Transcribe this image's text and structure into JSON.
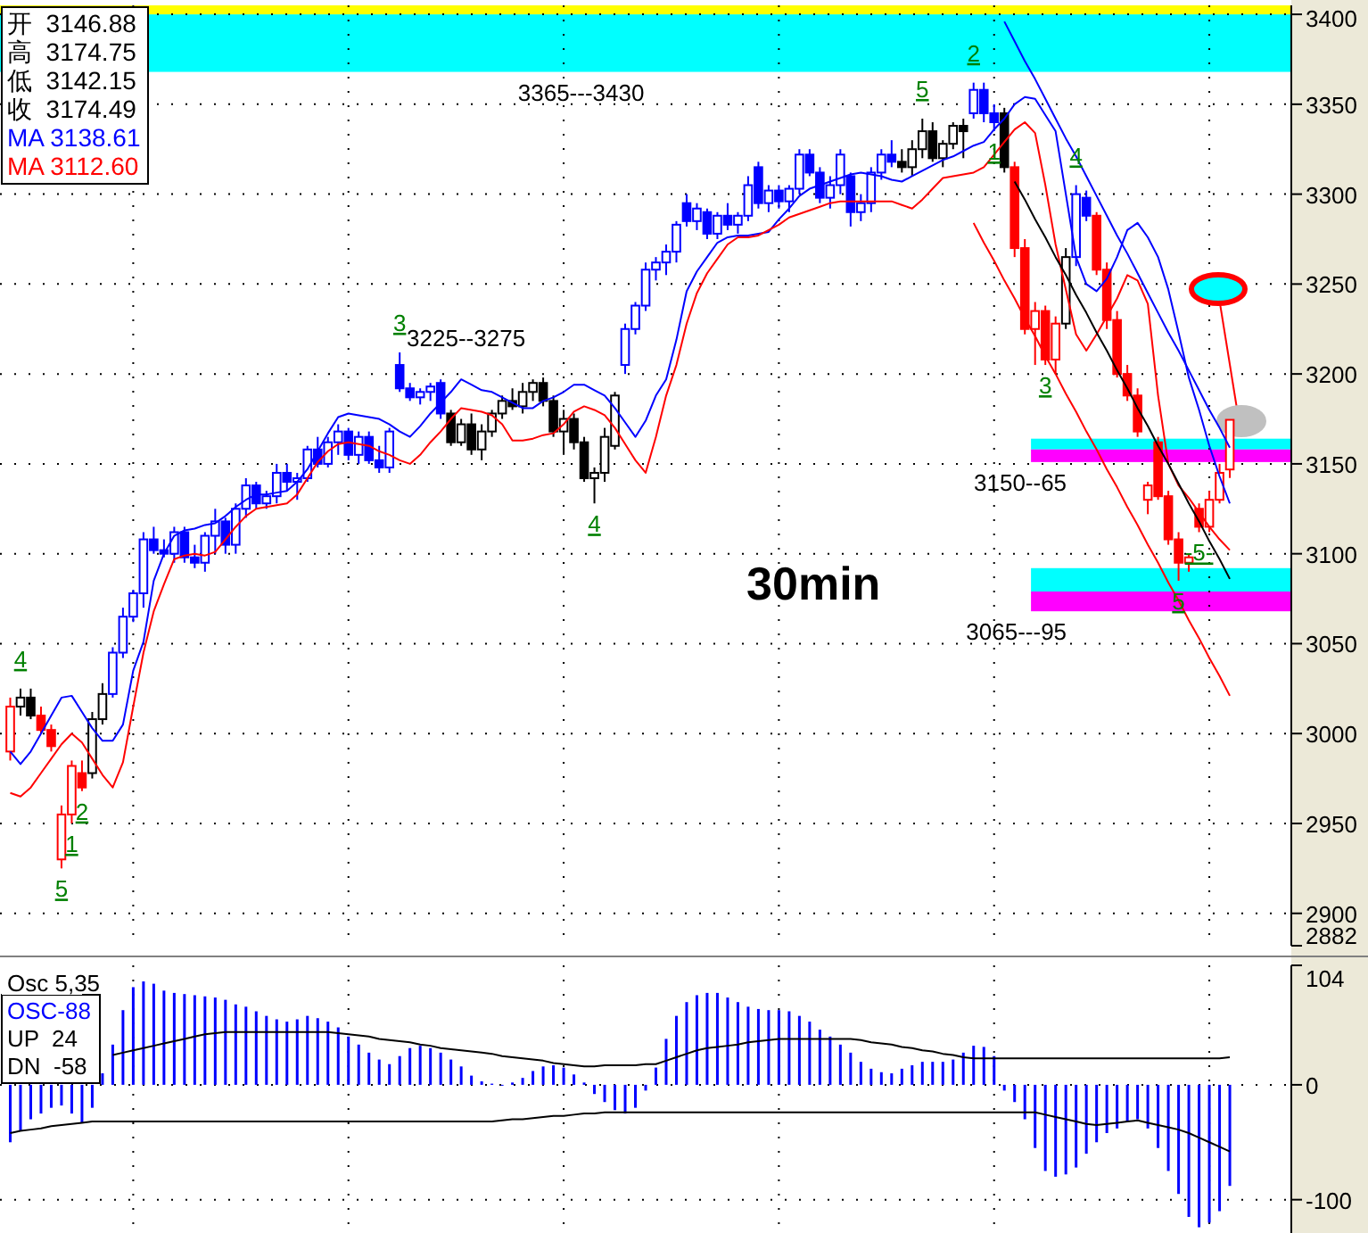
{
  "chart_data": [
    {
      "type": "candlestick",
      "title": "30min",
      "grid": true,
      "tick_labels": "y",
      "ylim": [
        2882,
        3405
      ],
      "yticks": [
        3400,
        3350,
        3300,
        3250,
        3200,
        3150,
        3100,
        3050,
        3000,
        2950,
        2900,
        2882
      ],
      "categories": [
        null,
        null,
        null,
        null,
        null,
        null,
        null,
        null,
        null,
        null,
        null,
        null,
        null,
        null,
        null,
        null,
        null,
        null,
        null,
        null,
        null,
        null,
        null,
        null,
        null,
        null,
        null,
        null,
        null,
        null,
        null,
        null,
        null,
        null,
        null,
        null,
        null,
        null,
        null,
        null,
        null,
        null,
        null,
        null,
        null,
        null,
        null,
        null,
        null,
        null,
        null,
        null,
        null,
        null,
        null,
        null,
        null,
        null,
        null,
        null,
        null,
        null,
        null,
        null,
        null,
        null,
        null,
        null,
        null,
        null,
        null,
        null,
        null,
        null,
        null,
        null,
        null,
        null,
        null,
        null,
        null,
        null,
        null,
        null,
        null,
        null,
        null,
        null,
        null,
        null,
        null,
        null,
        null,
        null,
        null,
        null,
        null,
        null,
        null,
        null,
        null,
        null,
        null,
        null,
        null,
        null,
        null,
        null,
        null,
        null,
        null,
        null,
        null,
        null,
        null,
        null,
        null,
        null,
        null,
        null
      ],
      "ohlc": [
        [
          2990,
          3020,
          2985,
          3015
        ],
        [
          3015,
          3025,
          3010,
          3020
        ],
        [
          3020,
          3025,
          3008,
          3010
        ],
        [
          3010,
          3015,
          3000,
          3002
        ],
        [
          3002,
          3005,
          2990,
          2993
        ],
        [
          2930,
          2960,
          2925,
          2955
        ],
        [
          2955,
          2985,
          2950,
          2982
        ],
        [
          2978,
          2985,
          2968,
          2970
        ],
        [
          2978,
          3012,
          2975,
          3008
        ],
        [
          3008,
          3028,
          3005,
          3022
        ],
        [
          3022,
          3048,
          3020,
          3045
        ],
        [
          3045,
          3070,
          3042,
          3065
        ],
        [
          3065,
          3080,
          3062,
          3078
        ],
        [
          3078,
          3112,
          3070,
          3108
        ],
        [
          3108,
          3115,
          3100,
          3102
        ],
        [
          3102,
          3108,
          3098,
          3100
        ],
        [
          3100,
          3115,
          3095,
          3112
        ],
        [
          3112,
          3115,
          3095,
          3098
        ],
        [
          3098,
          3105,
          3092,
          3095
        ],
        [
          3095,
          3112,
          3090,
          3110
        ],
        [
          3110,
          3125,
          3100,
          3118
        ],
        [
          3118,
          3120,
          3100,
          3105
        ],
        [
          3105,
          3128,
          3100,
          3125
        ],
        [
          3125,
          3142,
          3120,
          3138
        ],
        [
          3138,
          3140,
          3125,
          3128
        ],
        [
          3128,
          3135,
          3125,
          3132
        ],
        [
          3132,
          3150,
          3128,
          3145
        ],
        [
          3145,
          3150,
          3135,
          3140
        ],
        [
          3140,
          3145,
          3130,
          3142
        ],
        [
          3142,
          3160,
          3140,
          3158
        ],
        [
          3158,
          3165,
          3148,
          3150
        ],
        [
          3150,
          3165,
          3148,
          3162
        ],
        [
          3162,
          3172,
          3155,
          3168
        ],
        [
          3168,
          3170,
          3152,
          3155
        ],
        [
          3155,
          3168,
          3150,
          3165
        ],
        [
          3165,
          3168,
          3150,
          3152
        ],
        [
          3152,
          3160,
          3145,
          3148
        ],
        [
          3148,
          3170,
          3145,
          3168
        ],
        [
          3205,
          3212,
          3190,
          3192
        ],
        [
          3192,
          3195,
          3185,
          3187
        ],
        [
          3187,
          3192,
          3183,
          3190
        ],
        [
          3190,
          3195,
          3185,
          3193
        ],
        [
          3195,
          3197,
          3175,
          3178
        ],
        [
          3178,
          3180,
          3160,
          3162
        ],
        [
          3162,
          3175,
          3160,
          3172
        ],
        [
          3172,
          3178,
          3155,
          3158
        ],
        [
          3158,
          3172,
          3152,
          3168
        ],
        [
          3168,
          3180,
          3165,
          3178
        ],
        [
          3178,
          3188,
          3175,
          3185
        ],
        [
          3185,
          3192,
          3180,
          3182
        ],
        [
          3182,
          3195,
          3178,
          3190
        ],
        [
          3190,
          3197,
          3185,
          3195
        ],
        [
          3195,
          3198,
          3182,
          3185
        ],
        [
          3185,
          3188,
          3165,
          3168
        ],
        [
          3168,
          3180,
          3155,
          3175
        ],
        [
          3175,
          3178,
          3158,
          3162
        ],
        [
          3162,
          3165,
          3140,
          3142
        ],
        [
          3142,
          3148,
          3128,
          3145
        ],
        [
          3145,
          3170,
          3140,
          3165
        ],
        [
          3160,
          3190,
          3158,
          3188
        ],
        [
          3205,
          3228,
          3200,
          3225
        ],
        [
          3225,
          3240,
          3222,
          3238
        ],
        [
          3238,
          3262,
          3235,
          3258
        ],
        [
          3258,
          3265,
          3252,
          3262
        ],
        [
          3262,
          3272,
          3255,
          3268
        ],
        [
          3268,
          3285,
          3262,
          3283
        ],
        [
          3295,
          3300,
          3282,
          3285
        ],
        [
          3285,
          3295,
          3280,
          3292
        ],
        [
          3290,
          3292,
          3275,
          3278
        ],
        [
          3278,
          3290,
          3275,
          3288
        ],
        [
          3288,
          3295,
          3280,
          3283
        ],
        [
          3283,
          3290,
          3278,
          3288
        ],
        [
          3288,
          3310,
          3285,
          3305
        ],
        [
          3315,
          3318,
          3292,
          3295
        ],
        [
          3295,
          3305,
          3290,
          3302
        ],
        [
          3302,
          3305,
          3292,
          3296
        ],
        [
          3296,
          3305,
          3290,
          3303
        ],
        [
          3303,
          3325,
          3300,
          3322
        ],
        [
          3322,
          3325,
          3310,
          3312
        ],
        [
          3312,
          3315,
          3295,
          3298
        ],
        [
          3298,
          3310,
          3292,
          3305
        ],
        [
          3305,
          3325,
          3300,
          3322
        ],
        [
          3310,
          3312,
          3282,
          3290
        ],
        [
          3290,
          3300,
          3285,
          3295
        ],
        [
          3295,
          3315,
          3290,
          3312
        ],
        [
          3312,
          3325,
          3308,
          3322
        ],
        [
          3322,
          3330,
          3315,
          3318
        ],
        [
          3318,
          3325,
          3312,
          3315
        ],
        [
          3315,
          3330,
          3310,
          3325
        ],
        [
          3325,
          3342,
          3320,
          3335
        ],
        [
          3335,
          3340,
          3318,
          3320
        ],
        [
          3320,
          3330,
          3315,
          3328
        ],
        [
          3328,
          3340,
          3325,
          3338
        ],
        [
          3338,
          3342,
          3320,
          3335
        ],
        [
          3345,
          3362,
          3342,
          3358
        ],
        [
          3358,
          3362,
          3340,
          3345
        ],
        [
          3345,
          3350,
          3335,
          3340
        ],
        [
          3345,
          3348,
          3312,
          3315
        ],
        [
          3315,
          3318,
          3265,
          3270
        ],
        [
          3270,
          3275,
          3222,
          3225
        ],
        [
          3225,
          3240,
          3205,
          3235
        ],
        [
          3235,
          3238,
          3205,
          3208
        ],
        [
          3208,
          3232,
          3200,
          3228
        ],
        [
          3228,
          3270,
          3225,
          3265
        ],
        [
          3265,
          3305,
          3260,
          3300
        ],
        [
          3298,
          3302,
          3285,
          3288
        ],
        [
          3288,
          3290,
          3255,
          3258
        ],
        [
          3258,
          3262,
          3225,
          3230
        ],
        [
          3230,
          3235,
          3198,
          3200
        ],
        [
          3200,
          3205,
          3185,
          3188
        ],
        [
          3188,
          3192,
          3165,
          3168
        ],
        [
          3130,
          3140,
          3122,
          3138
        ],
        [
          3162,
          3165,
          3130,
          3132
        ],
        [
          3132,
          3135,
          3105,
          3108
        ],
        [
          3108,
          3112,
          3085,
          3095
        ],
        [
          3095,
          3100,
          3090,
          3098
        ],
        [
          3125,
          3128,
          3112,
          3115
        ],
        [
          3115,
          3135,
          3112,
          3130
        ],
        [
          3130,
          3150,
          3128,
          3145
        ],
        [
          3146.88,
          3174.75,
          3142.15,
          3174.49
        ]
      ],
      "colors": [
        "#ff0000",
        "#000000",
        "#000000",
        "#ff0000",
        "#ff0000",
        "#ff0000",
        "#ff0000",
        "#ff0000",
        "#000000",
        "#000000",
        "#0000ff",
        "#0000ff",
        "#0000ff",
        "#0000ff",
        "#0000ff",
        "#0000ff",
        "#0000ff",
        "#0000ff",
        "#0000ff",
        "#0000ff",
        "#0000ff",
        "#0000ff",
        "#0000ff",
        "#0000ff",
        "#0000ff",
        "#0000ff",
        "#0000ff",
        "#0000ff",
        "#0000ff",
        "#0000ff",
        "#0000ff",
        "#0000ff",
        "#0000ff",
        "#0000ff",
        "#0000ff",
        "#0000ff",
        "#0000ff",
        "#0000ff",
        "#0000ff",
        "#0000ff",
        "#0000ff",
        "#0000ff",
        "#0000ff",
        "#000000",
        "#000000",
        "#000000",
        "#000000",
        "#000000",
        "#000000",
        "#000000",
        "#000000",
        "#000000",
        "#000000",
        "#000000",
        "#000000",
        "#000000",
        "#000000",
        "#000000",
        "#000000",
        "#000000",
        "#0000ff",
        "#0000ff",
        "#0000ff",
        "#0000ff",
        "#0000ff",
        "#0000ff",
        "#0000ff",
        "#0000ff",
        "#0000ff",
        "#0000ff",
        "#0000ff",
        "#0000ff",
        "#0000ff",
        "#0000ff",
        "#0000ff",
        "#0000ff",
        "#0000ff",
        "#0000ff",
        "#0000ff",
        "#0000ff",
        "#0000ff",
        "#0000ff",
        "#0000ff",
        "#0000ff",
        "#0000ff",
        "#0000ff",
        "#0000ff",
        "#000000",
        "#000000",
        "#000000",
        "#000000",
        "#000000",
        "#000000",
        "#000000",
        "#0000ff",
        "#0000ff",
        "#0000ff",
        "#000000",
        "#ff0000",
        "#ff0000",
        "#ff0000",
        "#ff0000",
        "#ff0000",
        "#000000",
        "#0000ff",
        "#0000ff",
        "#ff0000",
        "#ff0000",
        "#ff0000",
        "#ff0000",
        "#ff0000",
        "#ff0000",
        "#ff0000",
        "#ff0000",
        "#ff0000",
        "#ff0000",
        "#ff0000",
        "#ff0000",
        "#ff0000",
        "#ff0000"
      ],
      "value_labels": [
        null,
        "4",
        null,
        null,
        null,
        "5",
        "1",
        "2",
        null,
        null,
        null,
        null,
        null,
        null,
        null,
        null,
        null,
        null,
        null,
        null,
        null,
        null,
        null,
        null,
        null,
        null,
        null,
        null,
        null,
        null,
        null,
        null,
        null,
        null,
        null,
        null,
        null,
        null,
        "3",
        null,
        null,
        null,
        null,
        null,
        null,
        null,
        null,
        null,
        null,
        null,
        null,
        null,
        null,
        null,
        null,
        null,
        null,
        "4",
        null,
        null,
        null,
        null,
        null,
        null,
        null,
        null,
        null,
        null,
        null,
        null,
        null,
        null,
        null,
        null,
        null,
        null,
        null,
        null,
        null,
        null,
        null,
        null,
        null,
        null,
        null,
        null,
        null,
        null,
        null,
        "5",
        null,
        null,
        null,
        null,
        "2",
        null,
        "1",
        null,
        null,
        null,
        null,
        "3",
        null,
        null,
        "4",
        null,
        null,
        null,
        null,
        null,
        null,
        null,
        null,
        null,
        "5",
        null,
        "-5-",
        null,
        null,
        null
      ],
      "series": [
        {
          "name": "MA 3138.61",
          "type": "line",
          "color": "#0000ff",
          "values": [
            2990,
            2983,
            2990,
            3000,
            3010,
            3020,
            3021,
            3012,
            3003,
            2996,
            2996,
            3005,
            3035,
            3051,
            3085,
            3100,
            3110,
            3113,
            3114,
            3116,
            3117,
            3121,
            3126,
            3130,
            3133,
            3133,
            3134,
            3135,
            3140,
            3147,
            3157,
            3167,
            3176,
            3178,
            3177,
            3176,
            3175,
            3172,
            3168,
            3165,
            3171,
            3178,
            3184,
            3190,
            3197,
            3194,
            3191,
            3190,
            3187,
            3184,
            3181,
            3181,
            3185,
            3187,
            3190,
            3194,
            3194,
            3191,
            3188,
            3181,
            3173,
            3165,
            3174,
            3188,
            3197,
            3219,
            3246,
            3257,
            3265,
            3273,
            3276,
            3277,
            3277,
            3278,
            3279,
            3286,
            3292,
            3299,
            3303,
            3305,
            3307,
            3309,
            3311,
            3312,
            3311,
            3310,
            3308,
            3307,
            3310,
            3313,
            3316,
            3319,
            3321,
            3324,
            3327,
            3329,
            3336,
            3342,
            3350,
            3354,
            3353,
            3344,
            3335,
            3300,
            3265,
            3250,
            3246,
            3253,
            3265,
            3280,
            3284,
            3276,
            3265,
            3247,
            3223,
            3198,
            3180,
            3160,
            3143,
            3128
          ]
        },
        {
          "name": "MA 3112.60",
          "type": "line",
          "color": "#ff0000",
          "values": [
            2967,
            2965,
            2970,
            2978,
            2986,
            2994,
            3000,
            2995,
            2986,
            2977,
            2970,
            2984,
            3015,
            3045,
            3068,
            3083,
            3097,
            3099,
            3100,
            3099,
            3101,
            3108,
            3115,
            3121,
            3125,
            3126,
            3127,
            3128,
            3133,
            3142,
            3151,
            3157,
            3161,
            3162,
            3161,
            3160,
            3157,
            3155,
            3152,
            3150,
            3155,
            3162,
            3168,
            3175,
            3181,
            3180,
            3179,
            3177,
            3172,
            3163,
            3163,
            3164,
            3166,
            3167,
            3172,
            3179,
            3182,
            3180,
            3177,
            3170,
            3161,
            3152,
            3145,
            3165,
            3188,
            3205,
            3228,
            3245,
            3256,
            3264,
            3272,
            3276,
            3276,
            3277,
            3280,
            3283,
            3287,
            3289,
            3291,
            3293,
            3295,
            3296,
            3296,
            3296,
            3296,
            3296,
            3296,
            3294,
            3292,
            3297,
            3303,
            3309,
            3310,
            3311,
            3312,
            3315,
            3322,
            3329,
            3336,
            3340,
            3334,
            3305,
            3272,
            3247,
            3222,
            3213,
            3222,
            3232,
            3242,
            3255,
            3252,
            3239,
            3188,
            3150,
            3138,
            3131,
            3123,
            3115,
            3108,
            3102
          ]
        },
        {
          "type": "line",
          "color": "#000000",
          "values": [
            null,
            null,
            null,
            null,
            null,
            null,
            null,
            null,
            null,
            null,
            null,
            null,
            null,
            null,
            null,
            null,
            null,
            null,
            null,
            null,
            null,
            null,
            null,
            null,
            null,
            null,
            null,
            null,
            null,
            null,
            null,
            null,
            null,
            null,
            null,
            null,
            null,
            null,
            null,
            null,
            null,
            null,
            null,
            null,
            null,
            null,
            null,
            null,
            null,
            null,
            null,
            null,
            null,
            null,
            null,
            null,
            null,
            null,
            null,
            null,
            null,
            null,
            null,
            null,
            null,
            null,
            null,
            null,
            null,
            null,
            null,
            null,
            null,
            null,
            null,
            null,
            null,
            null,
            null,
            null,
            null,
            null,
            null,
            null,
            null,
            null,
            null,
            null,
            null,
            null,
            null,
            null,
            null,
            null,
            null,
            null,
            null,
            null,
            3307,
            3297,
            3286,
            3276,
            3265,
            3255,
            3244,
            3234,
            3223,
            3213,
            3202,
            3192,
            3181,
            3171,
            3160,
            3150,
            3139,
            3128,
            3118,
            3107,
            3097,
            3086
          ]
        },
        {
          "type": "line",
          "color": "#ff0000",
          "values": [
            null,
            null,
            null,
            null,
            null,
            null,
            null,
            null,
            null,
            null,
            null,
            null,
            null,
            null,
            null,
            null,
            null,
            null,
            null,
            null,
            null,
            null,
            null,
            null,
            null,
            null,
            null,
            null,
            null,
            null,
            null,
            null,
            null,
            null,
            null,
            null,
            null,
            null,
            null,
            null,
            null,
            null,
            null,
            null,
            null,
            null,
            null,
            null,
            null,
            null,
            null,
            null,
            null,
            null,
            null,
            null,
            null,
            null,
            null,
            null,
            null,
            null,
            null,
            null,
            null,
            null,
            null,
            null,
            null,
            null,
            null,
            null,
            null,
            null,
            null,
            null,
            null,
            null,
            null,
            null,
            null,
            null,
            null,
            null,
            null,
            null,
            null,
            null,
            null,
            null,
            null,
            null,
            null,
            null,
            3284,
            3273,
            3263,
            3252,
            3242,
            3231,
            3221,
            3210,
            3200,
            3189,
            3179,
            3168,
            3158,
            3147,
            3137,
            3126,
            3116,
            3105,
            3095,
            3084,
            3074,
            3063,
            3053,
            3042,
            3032,
            3021
          ]
        },
        {
          "type": "line",
          "color": "#0000ff",
          "values": [
            null,
            null,
            null,
            null,
            null,
            null,
            null,
            null,
            null,
            null,
            null,
            null,
            null,
            null,
            null,
            null,
            null,
            null,
            null,
            null,
            null,
            null,
            null,
            null,
            null,
            null,
            null,
            null,
            null,
            null,
            null,
            null,
            null,
            null,
            null,
            null,
            null,
            null,
            null,
            null,
            null,
            null,
            null,
            null,
            null,
            null,
            null,
            null,
            null,
            null,
            null,
            null,
            null,
            null,
            null,
            null,
            null,
            null,
            null,
            null,
            null,
            null,
            null,
            null,
            null,
            null,
            null,
            null,
            null,
            null,
            null,
            null,
            null,
            null,
            null,
            null,
            null,
            null,
            null,
            null,
            null,
            null,
            null,
            null,
            null,
            null,
            null,
            null,
            null,
            null,
            null,
            null,
            null,
            null,
            null,
            null,
            null,
            3396,
            3385,
            3374,
            3364,
            3353,
            3342,
            3331,
            3321,
            3310,
            3299,
            3288,
            3277,
            3267,
            3256,
            3245,
            3234,
            3223,
            3213,
            3202,
            3191,
            3180,
            3170,
            3159
          ]
        }
      ],
      "bands": [
        {
          "axis": "y",
          "from": 3368,
          "to": 3400,
          "color": "#00ffff",
          "label": "3365---3430"
        },
        {
          "axis": "y",
          "from": 3400,
          "to": 3405,
          "color": "#ffff00"
        },
        {
          "axis": "y",
          "from": 3158,
          "to": 3164,
          "color": "#00ffff"
        },
        {
          "axis": "y",
          "from": 3151,
          "to": 3158,
          "color": "#ff00ff",
          "label": "3150--65"
        },
        {
          "axis": "y",
          "from": 3079,
          "to": 3092,
          "color": "#00ffff"
        },
        {
          "axis": "y",
          "from": 3068,
          "to": 3079,
          "color": "#ff00ff",
          "label": "3065---95"
        }
      ],
      "annotations": [
        "开  3146.88\n高  3174.75\n低  3142.15\n收  3174.49",
        "3225--3275"
      ]
    },
    {
      "type": "bar",
      "legend_title": "Osc 5,35",
      "grid": true,
      "tick_labels": "y",
      "ylim": [
        -129,
        104
      ],
      "yticks": [
        104,
        0,
        -100
      ],
      "categories": [
        null,
        null,
        null,
        null,
        null,
        null,
        null,
        null,
        null,
        null,
        null,
        null,
        null,
        null,
        null,
        null,
        null,
        null,
        null,
        null,
        null,
        null,
        null,
        null,
        null,
        null,
        null,
        null,
        null,
        null,
        null,
        null,
        null,
        null,
        null,
        null,
        null,
        null,
        null,
        null,
        null,
        null,
        null,
        null,
        null,
        null,
        null,
        null,
        null,
        null,
        null,
        null,
        null,
        null,
        null,
        null,
        null,
        null,
        null,
        null,
        null,
        null,
        null,
        null,
        null,
        null,
        null,
        null,
        null,
        null,
        null,
        null,
        null,
        null,
        null,
        null,
        null,
        null,
        null,
        null,
        null,
        null,
        null,
        null,
        null,
        null,
        null,
        null,
        null,
        null,
        null,
        null,
        null,
        null,
        null,
        null,
        null,
        null,
        null,
        null,
        null,
        null,
        null,
        null,
        null,
        null,
        null,
        null,
        null,
        null,
        null,
        null,
        null,
        null,
        null,
        null,
        null,
        null,
        null,
        null
      ],
      "series": [
        {
          "name": "OSC-88",
          "color": "#0000ff",
          "values": [
            -50,
            -40,
            -30,
            -25,
            -20,
            -18,
            -25,
            -33,
            -20,
            10,
            35,
            65,
            85,
            90,
            88,
            82,
            80,
            79,
            78,
            77,
            76,
            74,
            70,
            68,
            64,
            60,
            57,
            55,
            57,
            60,
            58,
            55,
            50,
            42,
            35,
            28,
            22,
            18,
            25,
            32,
            34,
            32,
            28,
            22,
            16,
            8,
            3,
            1,
            0,
            2,
            6,
            12,
            16,
            17,
            15,
            9,
            2,
            -8,
            -15,
            -22,
            -25,
            -20,
            -5,
            15,
            40,
            60,
            72,
            78,
            80,
            80,
            76,
            72,
            68,
            66,
            65,
            65,
            64,
            60,
            55,
            48,
            42,
            35,
            28,
            20,
            14,
            11,
            10,
            14,
            17,
            20,
            20,
            20,
            22,
            28,
            34,
            33,
            25,
            -5,
            -15,
            -30,
            -55,
            -75,
            -80,
            -78,
            -72,
            -60,
            -50,
            -42,
            -38,
            -32,
            -30,
            -38,
            -55,
            -75,
            -95,
            -115,
            -124,
            -120,
            -110,
            -88
          ]
        },
        {
          "name": "UP  24",
          "type": "line",
          "color": "#000000",
          "values": [
            null,
            null,
            null,
            null,
            null,
            null,
            null,
            null,
            null,
            null,
            26,
            28,
            30,
            32,
            34,
            36,
            38,
            40,
            42,
            44,
            45,
            46,
            46,
            46,
            46,
            46,
            46,
            46,
            46,
            46,
            46,
            46,
            45,
            44,
            43,
            42,
            40,
            39,
            38,
            37,
            35,
            34,
            32,
            31,
            30,
            29,
            28,
            27,
            25,
            24,
            23,
            22,
            21,
            19,
            18,
            17,
            16,
            16,
            17,
            17,
            17,
            17,
            18,
            18,
            21,
            24,
            27,
            30,
            32,
            33,
            34,
            35,
            37,
            38,
            39,
            40,
            40,
            40,
            40,
            40,
            40,
            40,
            40,
            39,
            37,
            36,
            35,
            33,
            32,
            30,
            29,
            27,
            26,
            24,
            23,
            23,
            23,
            23,
            23,
            23,
            23,
            23,
            23,
            23,
            23,
            23,
            23,
            23,
            23,
            23,
            23,
            23,
            23,
            23,
            23,
            23,
            23,
            23,
            23,
            24
          ]
        },
        {
          "name": "DN  -58",
          "type": "line",
          "color": "#000000",
          "values": [
            -42,
            -40,
            -39,
            -38,
            -36,
            -35,
            -34,
            -33,
            -32,
            -32,
            -32,
            -32,
            -32,
            -32,
            -32,
            -32,
            -32,
            -32,
            -32,
            -32,
            -32,
            -32,
            -32,
            -32,
            -32,
            -32,
            -32,
            -32,
            -32,
            -32,
            -32,
            -32,
            -32,
            -32,
            -32,
            -32,
            -32,
            -32,
            -32,
            -32,
            -32,
            -32,
            -32,
            -32,
            -32,
            -32,
            -32,
            -32,
            -31,
            -30,
            -30,
            -29,
            -28,
            -27,
            -27,
            -26,
            -25,
            -25,
            -24,
            -24,
            -24,
            -24,
            -24,
            -24,
            -24,
            -24,
            -24,
            -24,
            -24,
            -24,
            -24,
            -24,
            -24,
            -24,
            -24,
            -24,
            -24,
            -24,
            -24,
            -24,
            -24,
            -24,
            -24,
            -24,
            -24,
            -24,
            -24,
            -24,
            -24,
            -24,
            -24,
            -24,
            -24,
            -24,
            -24,
            -24,
            -24,
            -24,
            -24,
            -24,
            -24,
            -26,
            -28,
            -30,
            -32,
            -34,
            -35,
            -34,
            -33,
            -32,
            -31,
            -33,
            -35,
            -37,
            -39,
            -42,
            -46,
            -50,
            -54,
            -58
          ]
        }
      ]
    }
  ]
}
